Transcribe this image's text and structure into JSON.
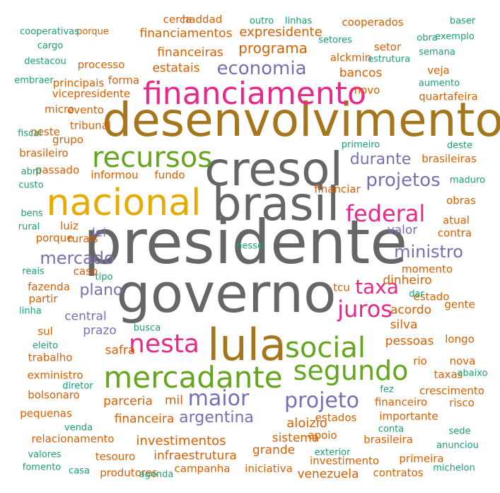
{
  "palette": {
    "g": "#1b9e77",
    "o": "#d95f02",
    "p": "#7570b3",
    "m": "#e7298a",
    "l": "#66a61e",
    "y": "#e6ab02",
    "b": "#a6761d",
    "k": "#666666"
  },
  "words": [
    {
      "text": "presidente",
      "color": "#666666",
      "size": "xxl"
    },
    {
      "text": "governo",
      "color": "#666666",
      "size": "xxl"
    },
    {
      "text": "desenvolvimento",
      "color": "#a6761d",
      "size": "xl"
    },
    {
      "text": "cresol",
      "color": "#666666",
      "size": "xl"
    },
    {
      "text": "brasil",
      "color": "#666666",
      "size": "xl"
    },
    {
      "text": "lula",
      "color": "#a6761d",
      "size": "xl"
    },
    {
      "text": "nacional",
      "color": "#e6ab02",
      "size": "xl"
    },
    {
      "text": "financiamento",
      "color": "#e7298a",
      "size": "lg"
    },
    {
      "text": "mercadante",
      "color": "#66a61e",
      "size": "lg"
    },
    {
      "text": "recursos",
      "color": "#66a61e",
      "size": "lg"
    },
    {
      "text": "social",
      "color": "#66a61e",
      "size": "lg"
    },
    {
      "text": "segundo",
      "color": "#66a61e",
      "size": "lg"
    },
    {
      "text": "nesta",
      "color": "#e7298a",
      "size": "lg"
    },
    {
      "text": "juros",
      "color": "#e7298a",
      "size": "md"
    },
    {
      "text": "federal",
      "color": "#e7298a",
      "size": "md"
    },
    {
      "text": "projeto",
      "color": "#7570b3",
      "size": "md"
    },
    {
      "text": "maior",
      "color": "#7570b3",
      "size": "md"
    },
    {
      "text": "taxa",
      "color": "#e7298a",
      "size": "md"
    },
    {
      "text": "economia",
      "color": "#7570b3",
      "size": "md"
    },
    {
      "text": "projetos",
      "color": "#7570b3",
      "size": "md"
    },
    {
      "text": "ministro",
      "color": "#7570b3",
      "size": "md"
    },
    {
      "text": "mercado",
      "color": "#7570b3",
      "size": "md"
    },
    {
      "text": "argentina",
      "color": "#7570b3",
      "size": "md"
    },
    {
      "text": "durante",
      "color": "#7570b3",
      "size": "md"
    },
    {
      "text": "plano",
      "color": "#7570b3",
      "size": "md"
    },
    {
      "text": "programa",
      "color": "#d95f02",
      "size": "sm"
    },
    {
      "text": "expresidente",
      "color": "#d95f02",
      "size": "sm"
    },
    {
      "text": "investimentos",
      "color": "#d95f02",
      "size": "sm"
    },
    {
      "text": "parceria",
      "color": "#d95f02",
      "size": "sm"
    },
    {
      "text": "valor",
      "color": "#7570b3",
      "size": "sm"
    },
    {
      "text": "central",
      "color": "#7570b3",
      "size": "sm"
    },
    {
      "text": "prazo",
      "color": "#7570b3",
      "size": "sm"
    },
    {
      "text": "lei",
      "color": "#7570b3",
      "size": "sm"
    },
    {
      "text": "aloizio",
      "color": "#d95f02",
      "size": "sm"
    },
    {
      "text": "financeira",
      "color": "#d95f02",
      "size": "sm"
    },
    {
      "text": "mil",
      "color": "#d95f02",
      "size": "sm"
    },
    {
      "text": "financeiras",
      "color": "#d95f02",
      "size": "sm"
    },
    {
      "text": "estatais",
      "color": "#d95f02",
      "size": "sm"
    },
    {
      "text": "bancos",
      "color": "#d95f02",
      "size": "sm"
    },
    {
      "text": "dinheiro",
      "color": "#d95f02",
      "size": "sm"
    },
    {
      "text": "acordo",
      "color": "#d95f02",
      "size": "sm"
    },
    {
      "text": "pessoas",
      "color": "#d95f02",
      "size": "sm"
    },
    {
      "text": "sistema",
      "color": "#d95f02",
      "size": "sm"
    },
    {
      "text": "infraestrutura",
      "color": "#d95f02",
      "size": "sm"
    },
    {
      "text": "financiamentos",
      "color": "#d95f02",
      "size": "sm"
    },
    {
      "text": "safra",
      "color": "#d95f02",
      "size": "sm"
    },
    {
      "text": "silva",
      "color": "#d95f02",
      "size": "sm"
    },
    {
      "text": "venezuela",
      "color": "#d95f02",
      "size": "sm"
    },
    {
      "text": "grande",
      "color": "#d95f02",
      "size": "sm"
    },
    {
      "text": "campanha",
      "color": "#d95f02",
      "size": "xs"
    },
    {
      "text": "novo",
      "color": "#d95f02",
      "size": "xs"
    },
    {
      "text": "tribunal",
      "color": "#d95f02",
      "size": "xs"
    },
    {
      "text": "informou",
      "color": "#d95f02",
      "size": "xs"
    },
    {
      "text": "fundo",
      "color": "#d95f02",
      "size": "xs"
    },
    {
      "text": "luiz",
      "color": "#d95f02",
      "size": "xs"
    },
    {
      "text": "porque",
      "color": "#d95f02",
      "size": "xs"
    },
    {
      "text": "caso",
      "color": "#d95f02",
      "size": "xs"
    },
    {
      "text": "fazenda",
      "color": "#d95f02",
      "size": "xs"
    },
    {
      "text": "momento",
      "color": "#d95f02",
      "size": "xs"
    },
    {
      "text": "estado",
      "color": "#d95f02",
      "size": "xs"
    },
    {
      "text": "atual",
      "color": "#d95f02",
      "size": "xs"
    },
    {
      "text": "contra",
      "color": "#d95f02",
      "size": "xs"
    },
    {
      "text": "apoio",
      "color": "#d95f02",
      "size": "xs"
    },
    {
      "text": "estados",
      "color": "#d95f02",
      "size": "xs"
    },
    {
      "text": "investimento",
      "color": "#d95f02",
      "size": "xs"
    },
    {
      "text": "iniciativa",
      "color": "#d95f02",
      "size": "xs"
    },
    {
      "text": "rio",
      "color": "#d95f02",
      "size": "xs"
    },
    {
      "text": "importante",
      "color": "#d95f02",
      "size": "xs"
    },
    {
      "text": "brasileira",
      "color": "#d95f02",
      "size": "xs"
    },
    {
      "text": "financeiro",
      "color": "#d95f02",
      "size": "xs"
    },
    {
      "text": "crescimento",
      "color": "#d95f02",
      "size": "xs"
    },
    {
      "text": "relacionamento",
      "color": "#d95f02",
      "size": "xs"
    },
    {
      "text": "haddad",
      "color": "#d95f02",
      "size": "xs"
    },
    {
      "text": "cerca",
      "color": "#d95f02",
      "size": "xs"
    },
    {
      "text": "cooperados",
      "color": "#d95f02",
      "size": "xs"
    },
    {
      "text": "setor",
      "color": "#d95f02",
      "size": "xs"
    },
    {
      "text": "alckmin",
      "color": "#d95f02",
      "size": "xs"
    },
    {
      "text": "vicepresidente",
      "color": "#d95f02",
      "size": "xs"
    },
    {
      "text": "forma",
      "color": "#d95f02",
      "size": "xs"
    },
    {
      "text": "processo",
      "color": "#d95f02",
      "size": "xs"
    },
    {
      "text": "principais",
      "color": "#d95f02",
      "size": "xs"
    },
    {
      "text": "evento",
      "color": "#d95f02",
      "size": "xs"
    },
    {
      "text": "micro",
      "color": "#d95f02",
      "size": "xs"
    },
    {
      "text": "grupo",
      "color": "#d95f02",
      "size": "xs"
    },
    {
      "text": "brasileiro",
      "color": "#d95f02",
      "size": "xs"
    },
    {
      "text": "passado",
      "color": "#d95f02",
      "size": "xs"
    },
    {
      "text": "veja",
      "color": "#d95f02",
      "size": "xs"
    },
    {
      "text": "quartafeira",
      "color": "#d95f02",
      "size": "xs"
    },
    {
      "text": "brasileiras",
      "color": "#d95f02",
      "size": "xs"
    },
    {
      "text": "obras",
      "color": "#d95f02",
      "size": "xs"
    },
    {
      "text": "gente",
      "color": "#d95f02",
      "size": "xs"
    },
    {
      "text": "longo",
      "color": "#d95f02",
      "size": "xs"
    },
    {
      "text": "nova",
      "color": "#d95f02",
      "size": "xs"
    },
    {
      "text": "taxas",
      "color": "#d95f02",
      "size": "xs"
    },
    {
      "text": "risco",
      "color": "#d95f02",
      "size": "xs"
    },
    {
      "text": "primeira",
      "color": "#d95f02",
      "size": "xs"
    },
    {
      "text": "contratos",
      "color": "#d95f02",
      "size": "xs"
    },
    {
      "text": "financiar",
      "color": "#d95f02",
      "size": "xs"
    },
    {
      "text": "tcu",
      "color": "#d95f02",
      "size": "xs"
    },
    {
      "text": "sul",
      "color": "#d95f02",
      "size": "xs"
    },
    {
      "text": "trabalho",
      "color": "#d95f02",
      "size": "xs"
    },
    {
      "text": "exministro",
      "color": "#d95f02",
      "size": "xs"
    },
    {
      "text": "bolsonaro",
      "color": "#d95f02",
      "size": "xs"
    },
    {
      "text": "pequenas",
      "color": "#d95f02",
      "size": "xs"
    },
    {
      "text": "tesouro",
      "color": "#d95f02",
      "size": "xs"
    },
    {
      "text": "produtores",
      "color": "#d95f02",
      "size": "xs"
    },
    {
      "text": "partir",
      "color": "#d95f02",
      "size": "xs"
    },
    {
      "text": "neste",
      "color": "#d95f02",
      "size": "xs"
    },
    {
      "text": "rurais",
      "color": "#d95f02",
      "size": "xs"
    },
    {
      "text": "porque",
      "color": "#d95f02",
      "size": "xs"
    },
    {
      "text": "cooperativas",
      "color": "#1b9e77",
      "size": "xxs"
    },
    {
      "text": "cargo",
      "color": "#1b9e77",
      "size": "xxs"
    },
    {
      "text": "destacou",
      "color": "#1b9e77",
      "size": "xxs"
    },
    {
      "text": "embraer",
      "color": "#1b9e77",
      "size": "xxs"
    },
    {
      "text": "fiscal",
      "color": "#1b9e77",
      "size": "xxs"
    },
    {
      "text": "abril",
      "color": "#1b9e77",
      "size": "xxs"
    },
    {
      "text": "custo",
      "color": "#1b9e77",
      "size": "xxs"
    },
    {
      "text": "bens",
      "color": "#1b9e77",
      "size": "xxs"
    },
    {
      "text": "rural",
      "color": "#1b9e77",
      "size": "xxs"
    },
    {
      "text": "reais",
      "color": "#1b9e77",
      "size": "xxs"
    },
    {
      "text": "linha",
      "color": "#1b9e77",
      "size": "xxs"
    },
    {
      "text": "eleito",
      "color": "#1b9e77",
      "size": "xxs"
    },
    {
      "text": "diretor",
      "color": "#1b9e77",
      "size": "xxs"
    },
    {
      "text": "venda",
      "color": "#1b9e77",
      "size": "xxs"
    },
    {
      "text": "valores",
      "color": "#1b9e77",
      "size": "xxs"
    },
    {
      "text": "fomento",
      "color": "#1b9e77",
      "size": "xxs"
    },
    {
      "text": "casa",
      "color": "#1b9e77",
      "size": "xxs"
    },
    {
      "text": "agenda",
      "color": "#1b9e77",
      "size": "xxs"
    },
    {
      "text": "outro",
      "color": "#1b9e77",
      "size": "xxs"
    },
    {
      "text": "linhas",
      "color": "#1b9e77",
      "size": "xxs"
    },
    {
      "text": "setores",
      "color": "#1b9e77",
      "size": "xxs"
    },
    {
      "text": "obra",
      "color": "#1b9e77",
      "size": "xxs"
    },
    {
      "text": "estrutura",
      "color": "#1b9e77",
      "size": "xxs"
    },
    {
      "text": "baser",
      "color": "#1b9e77",
      "size": "xxs"
    },
    {
      "text": "exemplo",
      "color": "#1b9e77",
      "size": "xxs"
    },
    {
      "text": "semana",
      "color": "#1b9e77",
      "size": "xxs"
    },
    {
      "text": "aumento",
      "color": "#1b9e77",
      "size": "xxs"
    },
    {
      "text": "deste",
      "color": "#1b9e77",
      "size": "xxs"
    },
    {
      "text": "primeiro",
      "color": "#1b9e77",
      "size": "xxs"
    },
    {
      "text": "maduro",
      "color": "#1b9e77",
      "size": "xxs"
    },
    {
      "text": "tipo",
      "color": "#1b9e77",
      "size": "xxs"
    },
    {
      "text": "dar",
      "color": "#1b9e77",
      "size": "xxs"
    },
    {
      "text": "busca",
      "color": "#1b9e77",
      "size": "xxs"
    },
    {
      "text": "abaixo",
      "color": "#1b9e77",
      "size": "xxs"
    },
    {
      "text": "fez",
      "color": "#1b9e77",
      "size": "xxs"
    },
    {
      "text": "conta",
      "color": "#1b9e77",
      "size": "xxs"
    },
    {
      "text": "sede",
      "color": "#1b9e77",
      "size": "xxs"
    },
    {
      "text": "anunciou",
      "color": "#1b9e77",
      "size": "xxs"
    },
    {
      "text": "exterior",
      "color": "#1b9e77",
      "size": "xxs"
    },
    {
      "text": "michelon",
      "color": "#1b9e77",
      "size": "xxs"
    },
    {
      "text": "nesse",
      "color": "#1b9e77",
      "size": "xxs"
    }
  ]
}
